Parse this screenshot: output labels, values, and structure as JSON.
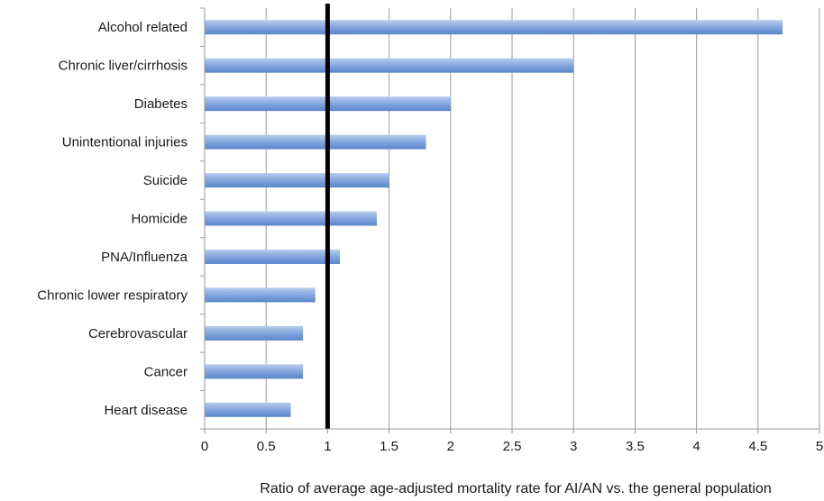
{
  "chart_data": {
    "type": "bar",
    "orientation": "horizontal",
    "categories": [
      "Alcohol related",
      "Chronic liver/cirrhosis",
      "Diabetes",
      "Unintentional injuries",
      "Suicide",
      "Homicide",
      "PNA/Influenza",
      "Chronic lower respiratory",
      "Cerebrovascular",
      "Cancer",
      "Heart disease"
    ],
    "values": [
      4.7,
      3.0,
      2.0,
      1.8,
      1.5,
      1.4,
      1.1,
      0.9,
      0.8,
      0.8,
      0.7
    ],
    "title": "",
    "xlabel": "Ratio of average age-adjusted mortality rate for AI/AN vs. the general population",
    "ylabel": "",
    "xlim": [
      0,
      5
    ],
    "xticks": [
      "0",
      "0.5",
      "1",
      "1.5",
      "2",
      "2.5",
      "3",
      "3.5",
      "4",
      "4.5",
      "5"
    ],
    "grid": "vertical",
    "reference_line": 1,
    "legend": "none",
    "colors": {
      "bar_light": "#b8cdee",
      "bar_dark": "#5a86c9",
      "gridline": "#9a9a9a",
      "reference_line": "#000000"
    }
  }
}
